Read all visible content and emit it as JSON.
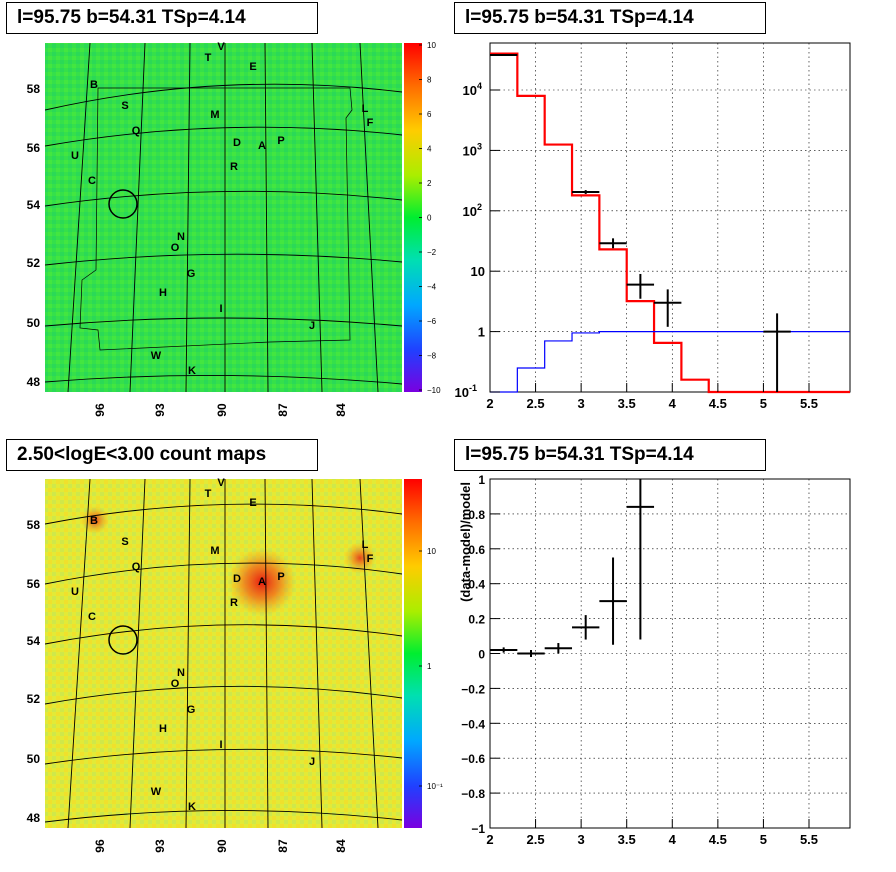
{
  "titles": {
    "top_left": "l=95.75 b=54.31 TSp=4.14",
    "top_right": "l=95.75 b=54.31 TSp=4.14",
    "bottom_left": "2.50<logE<3.00 count maps",
    "bottom_right": "l=95.75 b=54.31 TSp=4.14"
  },
  "skymap": {
    "lon_ticks": [
      "96",
      "93",
      "90",
      "87",
      "84"
    ],
    "lat_ticks": [
      "58",
      "56",
      "54",
      "52",
      "50",
      "48"
    ],
    "source_labels": [
      "V",
      "T",
      "E",
      "B",
      "S",
      "M",
      "L",
      "F",
      "Q",
      "D",
      "A",
      "P",
      "U",
      "R",
      "C",
      "N",
      "O",
      "G",
      "H",
      "I",
      "J",
      "W",
      "K"
    ]
  },
  "colorbar_top": {
    "ticks": [
      "10",
      "8",
      "6",
      "4",
      "2",
      "0",
      "−2",
      "−4",
      "−6",
      "−8",
      "−10"
    ]
  },
  "colorbar_bottom": {
    "ticks": [
      "10",
      "1",
      "10⁻¹"
    ]
  },
  "chart_data": [
    {
      "type": "line",
      "panel": "top_right",
      "x_ticks": [
        "2",
        "2.5",
        "3",
        "3.5",
        "4",
        "4.5",
        "5",
        "5.5"
      ],
      "xlim": [
        2,
        5.95
      ],
      "y_scale": "log",
      "ylim": [
        0.1,
        60000
      ],
      "y_tick_labels": [
        "10^4",
        "10^3",
        "10^2",
        "10",
        "1",
        "10^-1"
      ],
      "grid": true,
      "series": [
        {
          "color": "#ff0000",
          "style": "step",
          "bin_edges": [
            2.0,
            2.3,
            2.6,
            2.9,
            3.2,
            3.5,
            3.8,
            4.1,
            4.4,
            5.95
          ],
          "values": [
            40000,
            8000,
            1250,
            180,
            23,
            3.2,
            0.65,
            0.16,
            0.1
          ]
        },
        {
          "color": "#0000ff",
          "style": "step",
          "bin_edges": [
            2.0,
            2.3,
            2.6,
            2.9,
            3.2,
            3.5,
            5.95
          ],
          "values": [
            0.05,
            0.25,
            0.7,
            0.95,
            1.0,
            1.0
          ]
        },
        {
          "color": "#000000",
          "style": "errorbar",
          "points": [
            {
              "x": 2.15,
              "y": 38000,
              "xerr": 0.15,
              "ylo": 37000,
              "yhi": 39000
            },
            {
              "x": 3.05,
              "y": 205,
              "xerr": 0.15,
              "ylo": 190,
              "yhi": 220
            },
            {
              "x": 3.35,
              "y": 29,
              "xerr": 0.15,
              "ylo": 24,
              "yhi": 35
            },
            {
              "x": 3.65,
              "y": 6,
              "xerr": 0.15,
              "ylo": 3.5,
              "yhi": 9
            },
            {
              "x": 3.95,
              "y": 3,
              "xerr": 0.15,
              "ylo": 1.2,
              "yhi": 5
            },
            {
              "x": 5.15,
              "y": 1,
              "xerr": 0.15,
              "ylo": 0.1,
              "yhi": 2
            }
          ]
        }
      ]
    },
    {
      "type": "scatter",
      "panel": "bottom_right",
      "x_ticks": [
        "2",
        "2.5",
        "3",
        "3.5",
        "4",
        "4.5",
        "5",
        "5.5"
      ],
      "xlim": [
        2,
        5.95
      ],
      "ylim": [
        -1,
        1
      ],
      "y_ticks": [
        "1",
        "0.8",
        "0.6",
        "0.4",
        "0.2",
        "0",
        "−0.2",
        "−0.4",
        "−0.6",
        "−0.8",
        "−1"
      ],
      "ylabel": "(data-model)/model",
      "grid": true,
      "series": [
        {
          "color": "#000000",
          "style": "errorbar",
          "points": [
            {
              "x": 2.15,
              "y": 0.02,
              "xerr": 0.15,
              "ylo": 0.005,
              "yhi": 0.035
            },
            {
              "x": 2.45,
              "y": 0.0,
              "xerr": 0.15,
              "ylo": -0.02,
              "yhi": 0.02
            },
            {
              "x": 2.75,
              "y": 0.03,
              "xerr": 0.15,
              "ylo": 0.0,
              "yhi": 0.06
            },
            {
              "x": 3.05,
              "y": 0.15,
              "xerr": 0.15,
              "ylo": 0.08,
              "yhi": 0.22
            },
            {
              "x": 3.35,
              "y": 0.3,
              "xerr": 0.15,
              "ylo": 0.05,
              "yhi": 0.55
            },
            {
              "x": 3.65,
              "y": 0.84,
              "xerr": 0.15,
              "ylo": 0.08,
              "yhi": 1.0
            }
          ]
        }
      ]
    }
  ]
}
